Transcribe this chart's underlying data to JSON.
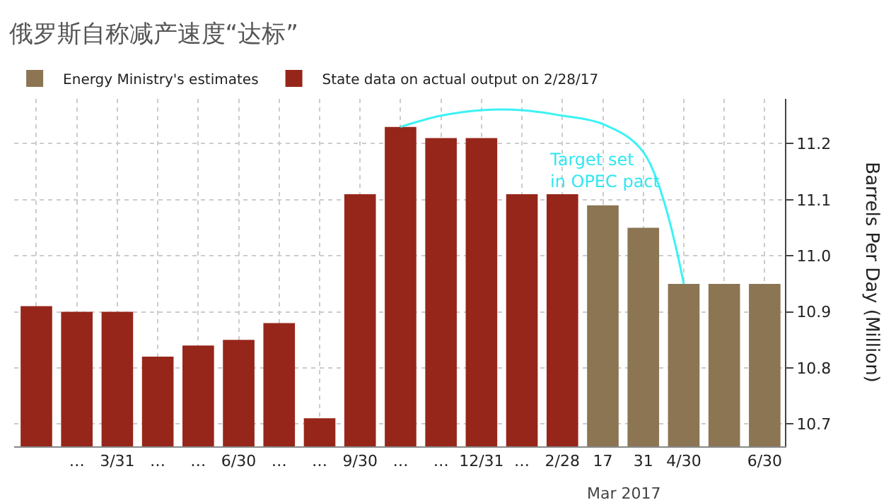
{
  "chart_data": {
    "type": "bar",
    "title": "俄罗斯自称减产速度“达标”",
    "ylabel": "Barrels Per Day (Million)",
    "categories": [
      null,
      "…",
      "3/31",
      "…",
      "…",
      "6/30",
      "…",
      "…",
      "9/30",
      "…",
      "…",
      "12/31",
      "…",
      "2/28",
      "17",
      "31",
      "4/30",
      null,
      "6/30"
    ],
    "series": [
      {
        "name": "Energy Ministry's estimates",
        "color": "#8b7553",
        "values": [
          null,
          null,
          null,
          null,
          null,
          null,
          null,
          null,
          null,
          null,
          null,
          null,
          null,
          null,
          11.09,
          11.05,
          10.95,
          10.95,
          10.95
        ]
      },
      {
        "name": "State data on actual output on 2/28/17",
        "color": "#96261a",
        "values": [
          10.91,
          10.9,
          10.9,
          10.82,
          10.84,
          10.85,
          10.88,
          10.71,
          11.11,
          11.23,
          11.21,
          11.21,
          11.11,
          11.11,
          null,
          null,
          null,
          null,
          null
        ]
      },
      {
        "type": "line",
        "color": "#3cf2f5",
        "values": [
          null,
          null,
          null,
          null,
          null,
          null,
          null,
          null,
          null,
          11.23,
          11.25,
          11.26,
          11.26,
          11.25,
          11.235,
          11.185,
          10.95,
          null,
          null
        ]
      }
    ],
    "ylim": [
      10.66,
      11.28
    ],
    "yticks": [
      10.7,
      10.8,
      10.9,
      {
        "value": 11,
        "label": "11.0"
      },
      11.1,
      11.2
    ],
    "grid": true,
    "legend": "top left",
    "annotations": [
      "Target set\nin OPEC pact",
      "Mar 2017"
    ]
  }
}
